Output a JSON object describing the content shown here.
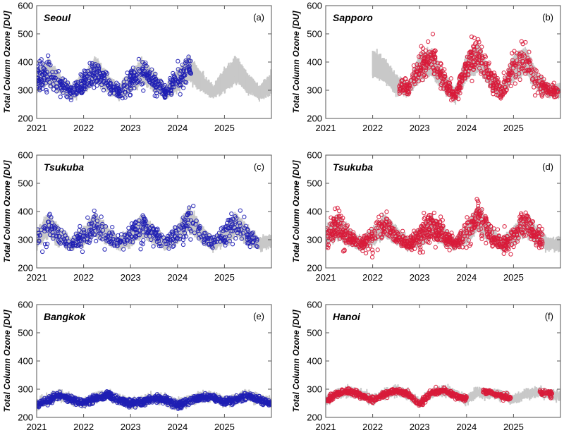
{
  "colors": {
    "reference": "#c8c8c8",
    "series_a": "#1f1fb4",
    "series_b": "#d81b3a"
  },
  "chart_data": [
    {
      "type": "scatter",
      "panel_label": "(a)",
      "station": "Seoul",
      "ylabel": "Total Column Ozone [DU]",
      "xlim": [
        2021,
        2026
      ],
      "ylim": [
        200,
        600
      ],
      "xticks": [
        "2021",
        "2022",
        "2023",
        "2024",
        "2025"
      ],
      "yticks": [
        "200",
        "300",
        "400",
        "500",
        "600"
      ],
      "series_color": "series_a",
      "reference_range": [
        2021.0,
        2026.0
      ],
      "reference_envelope": {
        "t": [
          2021.0,
          2021.25,
          2021.5,
          2021.75,
          2022.0,
          2022.25,
          2022.5,
          2022.75,
          2023.0,
          2023.25,
          2023.5,
          2023.75,
          2024.0,
          2024.25,
          2024.5,
          2024.75,
          2025.0,
          2025.25,
          2025.5,
          2025.75,
          2026.0
        ],
        "mean": [
          335,
          365,
          325,
          290,
          325,
          370,
          330,
          292,
          330,
          370,
          332,
          293,
          335,
          380,
          328,
          292,
          335,
          375,
          325,
          290,
          325
        ],
        "halfwidth": [
          38,
          45,
          30,
          20,
          38,
          45,
          30,
          20,
          38,
          45,
          30,
          20,
          38,
          45,
          30,
          20,
          38,
          45,
          30,
          20,
          38
        ]
      },
      "observations": {
        "t_start": 2021.0,
        "t_end": 2024.3,
        "count": 520,
        "t": [
          2021.0,
          2021.25,
          2021.5,
          2021.75,
          2022.0,
          2022.25,
          2022.5,
          2022.75,
          2023.0,
          2023.25,
          2023.5,
          2023.75,
          2024.0,
          2024.25,
          2024.5,
          2024.75,
          2025.0,
          2025.25,
          2025.5,
          2025.75,
          2026.0
        ],
        "mean": [
          335,
          365,
          325,
          290,
          325,
          370,
          330,
          292,
          330,
          370,
          332,
          293,
          335,
          380,
          328,
          292,
          335,
          375,
          325,
          290,
          325
        ],
        "spread": [
          30,
          35,
          24,
          14,
          30,
          35,
          24,
          14,
          30,
          35,
          24,
          14,
          30,
          35,
          24,
          14,
          30,
          35,
          24,
          14,
          30
        ]
      }
    },
    {
      "type": "scatter",
      "panel_label": "(b)",
      "station": "Sapporo",
      "ylabel": "Total Column Ozone [DU]",
      "xlim": [
        2021,
        2026
      ],
      "ylim": [
        200,
        600
      ],
      "xticks": [
        "2021",
        "2022",
        "2023",
        "2024",
        "2025"
      ],
      "yticks": [
        "200",
        "300",
        "400",
        "500",
        "600"
      ],
      "series_color": "series_b",
      "reference_range": [
        2022.0,
        2026.0
      ],
      "reference_envelope": {
        "t": [
          2022.0,
          2022.25,
          2022.5,
          2022.75,
          2023.0,
          2023.25,
          2023.5,
          2023.75,
          2024.0,
          2024.25,
          2024.5,
          2024.75,
          2025.0,
          2025.25,
          2025.5,
          2025.75,
          2026.0
        ],
        "mean": [
          395,
          370,
          320,
          300,
          380,
          400,
          330,
          280,
          380,
          420,
          340,
          295,
          380,
          405,
          330,
          300,
          300
        ],
        "halfwidth": [
          45,
          40,
          30,
          20,
          45,
          45,
          30,
          20,
          45,
          50,
          30,
          20,
          45,
          45,
          30,
          20,
          20
        ]
      },
      "observations": {
        "t_start": 2022.55,
        "t_end": 2025.95,
        "count": 600,
        "t": [
          2022.5,
          2022.75,
          2023.0,
          2023.25,
          2023.5,
          2023.75,
          2024.0,
          2024.25,
          2024.5,
          2024.75,
          2025.0,
          2025.25,
          2025.5,
          2025.75,
          2026.0
        ],
        "mean": [
          315,
          305,
          385,
          415,
          335,
          280,
          385,
          435,
          345,
          290,
          385,
          410,
          330,
          295,
          300
        ],
        "spread": [
          25,
          18,
          35,
          40,
          28,
          18,
          35,
          45,
          28,
          18,
          35,
          40,
          28,
          15,
          15
        ]
      }
    },
    {
      "type": "scatter",
      "panel_label": "(c)",
      "station": "Tsukuba",
      "ylabel": "Total Column Ozone [DU]",
      "xlim": [
        2021,
        2026
      ],
      "ylim": [
        200,
        600
      ],
      "xticks": [
        "2021",
        "2022",
        "2023",
        "2024",
        "2025"
      ],
      "yticks": [
        "200",
        "300",
        "400",
        "500",
        "600"
      ],
      "series_color": "series_a",
      "reference_range": [
        2021.0,
        2026.0
      ],
      "reference_envelope": {
        "t": [
          2021.0,
          2021.25,
          2021.5,
          2021.75,
          2022.0,
          2022.25,
          2022.5,
          2022.75,
          2023.0,
          2023.25,
          2023.5,
          2023.75,
          2024.0,
          2024.25,
          2024.5,
          2024.75,
          2025.0,
          2025.25,
          2025.5,
          2025.75,
          2026.0
        ],
        "mean": [
          310,
          350,
          310,
          285,
          310,
          355,
          315,
          285,
          310,
          350,
          315,
          285,
          320,
          375,
          320,
          285,
          315,
          355,
          315,
          285,
          295
        ],
        "halfwidth": [
          30,
          40,
          28,
          18,
          30,
          40,
          28,
          18,
          30,
          40,
          28,
          18,
          30,
          45,
          28,
          18,
          30,
          40,
          28,
          18,
          20
        ]
      },
      "observations": {
        "t_start": 2021.0,
        "t_end": 2025.7,
        "count": 480,
        "t": [
          2021.0,
          2021.25,
          2021.5,
          2021.75,
          2022.0,
          2022.25,
          2022.5,
          2022.75,
          2023.0,
          2023.25,
          2023.5,
          2023.75,
          2024.0,
          2024.25,
          2024.5,
          2024.75,
          2025.0,
          2025.25,
          2025.5,
          2025.75,
          2026.0
        ],
        "mean": [
          300,
          355,
          305,
          285,
          310,
          360,
          315,
          285,
          310,
          355,
          315,
          285,
          320,
          385,
          320,
          285,
          315,
          360,
          315,
          285,
          295
        ],
        "spread": [
          28,
          38,
          25,
          15,
          28,
          38,
          25,
          15,
          28,
          38,
          25,
          15,
          28,
          42,
          25,
          15,
          28,
          38,
          25,
          15,
          18
        ]
      }
    },
    {
      "type": "scatter",
      "panel_label": "(d)",
      "station": "Tsukuba",
      "ylabel": "Total Column Ozone [DU]",
      "xlim": [
        2021,
        2026
      ],
      "ylim": [
        200,
        600
      ],
      "xticks": [
        "2021",
        "2022",
        "2023",
        "2024",
        "2025"
      ],
      "yticks": [
        "200",
        "300",
        "400",
        "500",
        "600"
      ],
      "series_color": "series_b",
      "reference_range": [
        2021.0,
        2026.0
      ],
      "reference_envelope": {
        "t": [
          2021.0,
          2021.25,
          2021.5,
          2021.75,
          2022.0,
          2022.25,
          2022.5,
          2022.75,
          2023.0,
          2023.25,
          2023.5,
          2023.75,
          2024.0,
          2024.25,
          2024.5,
          2024.75,
          2025.0,
          2025.25,
          2025.5,
          2025.75,
          2026.0
        ],
        "mean": [
          315,
          345,
          310,
          285,
          310,
          350,
          315,
          285,
          310,
          345,
          315,
          285,
          320,
          375,
          320,
          285,
          315,
          355,
          315,
          285,
          285
        ],
        "halfwidth": [
          30,
          40,
          28,
          18,
          30,
          40,
          28,
          18,
          30,
          40,
          28,
          18,
          30,
          45,
          28,
          18,
          30,
          40,
          28,
          18,
          20
        ]
      },
      "observations": {
        "t_start": 2021.0,
        "t_end": 2025.62,
        "count": 900,
        "t": [
          2021.0,
          2021.25,
          2021.5,
          2021.75,
          2022.0,
          2022.25,
          2022.5,
          2022.75,
          2023.0,
          2023.25,
          2023.5,
          2023.75,
          2024.0,
          2024.25,
          2024.5,
          2024.75,
          2025.0,
          2025.25,
          2025.5,
          2025.75,
          2026.0
        ],
        "mean": [
          310,
          350,
          310,
          285,
          310,
          355,
          315,
          285,
          310,
          345,
          315,
          285,
          320,
          390,
          320,
          280,
          315,
          355,
          315,
          285,
          285
        ],
        "spread": [
          28,
          38,
          25,
          15,
          28,
          38,
          25,
          15,
          28,
          38,
          25,
          15,
          28,
          42,
          25,
          15,
          28,
          38,
          25,
          15,
          15
        ]
      }
    },
    {
      "type": "scatter",
      "panel_label": "(e)",
      "station": "Bangkok",
      "ylabel": "Total Column Ozone [DU]",
      "xlim": [
        2021,
        2026
      ],
      "ylim": [
        200,
        600
      ],
      "xticks": [
        "2021",
        "2022",
        "2023",
        "2024",
        "2025"
      ],
      "yticks": [
        "200",
        "300",
        "400",
        "500",
        "600"
      ],
      "series_color": "series_a",
      "reference_range": [
        2021.0,
        2026.0
      ],
      "reference_envelope": {
        "t": [
          2021.0,
          2021.25,
          2021.5,
          2021.75,
          2022.0,
          2022.25,
          2022.5,
          2022.75,
          2023.0,
          2023.25,
          2023.5,
          2023.75,
          2024.0,
          2024.25,
          2024.5,
          2024.75,
          2025.0,
          2025.25,
          2025.5,
          2025.75,
          2026.0
        ],
        "mean": [
          245,
          265,
          280,
          262,
          250,
          268,
          282,
          265,
          248,
          255,
          270,
          262,
          245,
          260,
          275,
          272,
          255,
          265,
          278,
          265,
          250
        ],
        "halfwidth": [
          12,
          14,
          12,
          12,
          12,
          14,
          12,
          12,
          12,
          14,
          12,
          12,
          12,
          14,
          12,
          12,
          12,
          14,
          12,
          12,
          12
        ]
      },
      "observations": {
        "t_start": 2021.0,
        "t_end": 2025.98,
        "count": 1100,
        "t": [
          2021.0,
          2021.25,
          2021.5,
          2021.75,
          2022.0,
          2022.25,
          2022.5,
          2022.75,
          2023.0,
          2023.25,
          2023.5,
          2023.75,
          2024.0,
          2024.25,
          2024.5,
          2024.75,
          2025.0,
          2025.25,
          2025.5,
          2025.75,
          2026.0
        ],
        "mean": [
          245,
          262,
          278,
          262,
          252,
          268,
          280,
          262,
          250,
          255,
          268,
          262,
          242,
          258,
          272,
          270,
          255,
          265,
          276,
          262,
          248
        ],
        "spread": [
          8,
          9,
          8,
          8,
          8,
          9,
          8,
          8,
          8,
          9,
          8,
          8,
          8,
          9,
          8,
          8,
          8,
          9,
          8,
          8,
          8
        ]
      }
    },
    {
      "type": "scatter",
      "panel_label": "(f)",
      "station": "Hanoi",
      "ylabel": "Total Column Ozone [DU]",
      "xlim": [
        2021,
        2026
      ],
      "ylim": [
        200,
        600
      ],
      "xticks": [
        "2021",
        "2022",
        "2023",
        "2024",
        "2025"
      ],
      "yticks": [
        "200",
        "300",
        "400",
        "500",
        "600"
      ],
      "series_color": "series_b",
      "reference_range": [
        2021.0,
        2026.0
      ],
      "reference_envelope": {
        "t": [
          2021.0,
          2021.25,
          2021.5,
          2021.75,
          2022.0,
          2022.25,
          2022.5,
          2022.75,
          2023.0,
          2023.25,
          2023.5,
          2023.75,
          2024.0,
          2024.25,
          2024.5,
          2024.75,
          2025.0,
          2025.25,
          2025.5,
          2025.75,
          2026.0
        ],
        "mean": [
          258,
          285,
          292,
          280,
          262,
          282,
          295,
          282,
          250,
          285,
          295,
          280,
          262,
          290,
          285,
          278,
          262,
          282,
          290,
          282,
          278
        ],
        "halfwidth": [
          12,
          12,
          12,
          12,
          12,
          12,
          12,
          12,
          12,
          12,
          12,
          12,
          12,
          12,
          12,
          12,
          12,
          12,
          12,
          12,
          12
        ]
      },
      "observations": {
        "t_start": 2021.0,
        "t_end": 2025.82,
        "gaps": [
          [
            2024.0,
            2024.35
          ],
          [
            2024.95,
            2025.55
          ]
        ],
        "count": 900,
        "t": [
          2021.0,
          2021.25,
          2021.5,
          2021.75,
          2022.0,
          2022.25,
          2022.5,
          2022.75,
          2023.0,
          2023.25,
          2023.5,
          2023.75,
          2024.0,
          2024.25,
          2024.5,
          2024.75,
          2025.0,
          2025.25,
          2025.5,
          2025.75,
          2026.0
        ],
        "mean": [
          258,
          286,
          292,
          280,
          262,
          282,
          296,
          282,
          248,
          288,
          295,
          278,
          265,
          295,
          288,
          275,
          262,
          282,
          290,
          285,
          280
        ],
        "spread": [
          8,
          7,
          6,
          7,
          8,
          7,
          6,
          7,
          8,
          7,
          6,
          7,
          8,
          7,
          6,
          7,
          8,
          7,
          6,
          7,
          8
        ]
      }
    }
  ]
}
